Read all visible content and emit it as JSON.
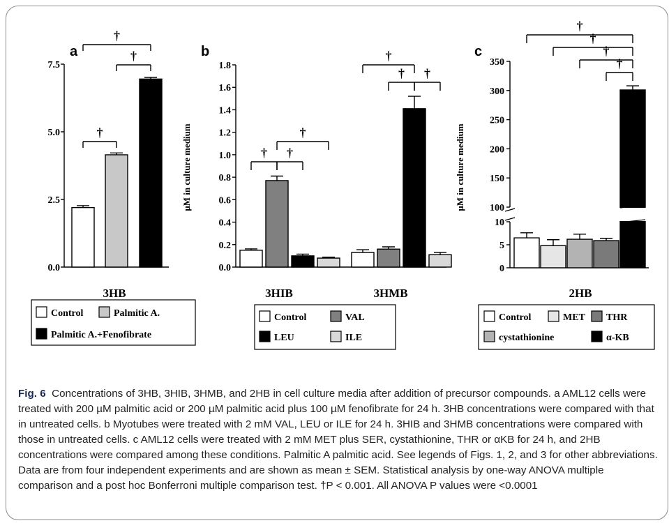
{
  "figure": {
    "caption": {
      "label": "Fig. 6",
      "text": "Concentrations of 3HB, 3HIB, 3HMB, and 2HB in cell culture media after addition of precursor compounds. a AML12 cells were treated with 200 µM palmitic acid or 200 µM palmitic acid plus 100 µM fenofibrate for 24 h. 3HB concentrations were compared with that in untreated cells. b Myotubes were treated with 2 mM VAL, LEU or ILE for 24 h. 3HIB and 3HMB concentrations were compared with those in untreated cells. c AML12 cells were treated with 2 mM MET plus SER, cystathionine, THR or αKB for 24 h, and 2HB concentrations were compared among these conditions. Palmitic A palmitic acid. See legends of Figs. 1, 2, and 3 for other abbreviations. Data are from four independent experiments and are shown as mean ± SEM. Statistical analysis by one-way ANOVA multiple comparison and a post hoc Bonferroni multiple comparison test. †P < 0.001. All ANOVA P values were <0.0001"
    },
    "significance_symbol": "†"
  },
  "chart_data": [
    {
      "panel": "a",
      "type": "bar",
      "title": "",
      "xlabel": "3HB",
      "ylabel": "",
      "ylim": [
        0,
        7.5
      ],
      "yticks": [
        "0.0",
        "2.5",
        "5.0",
        "7.5"
      ],
      "series": [
        {
          "name": "Control",
          "value": 2.2,
          "error": 0.07,
          "color": "#ffffff"
        },
        {
          "name": "Palmitic A.",
          "value": 4.15,
          "error": 0.07,
          "color": "#c8c8c8"
        },
        {
          "name": "Palmitic A.+Fenofibrate",
          "value": 6.95,
          "error": 0.06,
          "color": "#000000"
        }
      ],
      "significance": [
        [
          "Control",
          "Palmitic A."
        ],
        [
          "Palmitic A.",
          "Palmitic A.+Fenofibrate"
        ],
        [
          "Control",
          "Palmitic A.+Fenofibrate"
        ]
      ],
      "legend": [
        "Control",
        "Palmitic A.",
        "Palmitic A.+Fenofibrate"
      ]
    },
    {
      "panel": "b",
      "type": "bar",
      "title": "",
      "ylabel": "μM in culture medium",
      "ylim": [
        0,
        1.8
      ],
      "yticks": [
        "0.0",
        "0.2",
        "0.4",
        "0.6",
        "0.8",
        "1.0",
        "1.2",
        "1.4",
        "1.6",
        "1.8"
      ],
      "categories": [
        "3HIB",
        "3HMB"
      ],
      "series": [
        {
          "name": "Control",
          "color": "#ffffff",
          "values": [
            0.15,
            0.13
          ],
          "errors": [
            0.012,
            0.025
          ]
        },
        {
          "name": "VAL",
          "color": "#808080",
          "values": [
            0.77,
            0.16
          ],
          "errors": [
            0.04,
            0.02
          ]
        },
        {
          "name": "LEU",
          "color": "#000000",
          "values": [
            0.1,
            1.41
          ],
          "errors": [
            0.015,
            0.11
          ]
        },
        {
          "name": "ILE",
          "color": "#d9d9d9",
          "values": [
            0.08,
            0.11
          ],
          "errors": [
            0.008,
            0.02
          ]
        }
      ],
      "legend": [
        "Control",
        "VAL",
        "LEU",
        "ILE"
      ]
    },
    {
      "panel": "c",
      "type": "bar",
      "title": "",
      "xlabel": "2HB",
      "ylabel": "μM in culture medium",
      "axis_break": true,
      "lower_ylim": [
        0,
        10
      ],
      "lower_yticks": [
        "0",
        "5",
        "10"
      ],
      "upper_ylim": [
        100,
        350
      ],
      "upper_yticks": [
        "100",
        "150",
        "200",
        "250",
        "300",
        "350"
      ],
      "series": [
        {
          "name": "Control",
          "value": 6.5,
          "error": 1.1,
          "color": "#ffffff"
        },
        {
          "name": "MET",
          "value": 4.8,
          "error": 1.3,
          "color": "#e6e6e6"
        },
        {
          "name": "cystathionine",
          "value": 6.2,
          "error": 1.1,
          "color": "#b3b3b3"
        },
        {
          "name": "THR",
          "value": 5.9,
          "error": 0.5,
          "color": "#7a7a7a"
        },
        {
          "name": "α-KB",
          "value": 301,
          "error": 7,
          "color": "#000000"
        }
      ],
      "significance": [
        [
          "Control",
          "α-KB"
        ],
        [
          "MET",
          "α-KB"
        ],
        [
          "cystathionine",
          "α-KB"
        ],
        [
          "THR",
          "α-KB"
        ]
      ],
      "legend": [
        "Control",
        "MET",
        "THR",
        "cystathionine",
        "α-KB"
      ]
    }
  ]
}
